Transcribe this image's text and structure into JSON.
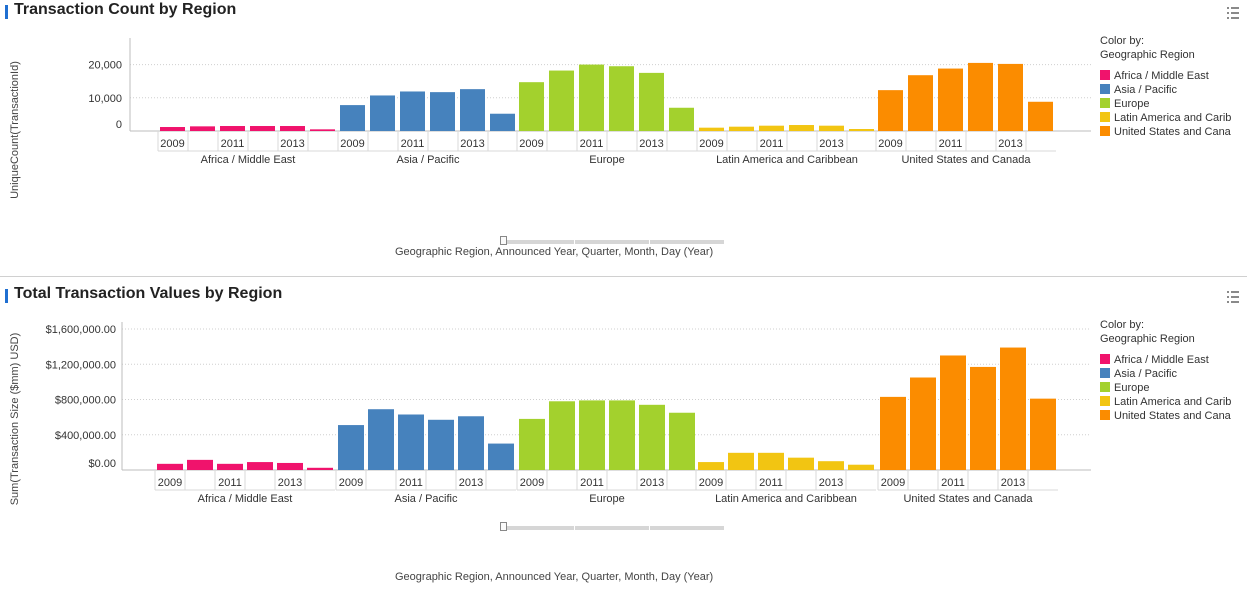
{
  "accent_color": "#1f6fd1",
  "colors": {
    "Africa / Middle East": "#f0136c",
    "Asia / Pacific": "#4682bd",
    "Europe": "#a3d12d",
    "Latin America and Caribbean": "#f2c512",
    "United States and Canada": "#fb8c00"
  },
  "panels": [
    {
      "title": "Transaction Count by Region",
      "color_by_label": "Color by:",
      "color_by_value": "Geographic Region",
      "legend": [
        "Africa / Middle East",
        "Asia / Pacific",
        "Europe",
        "Latin America and Carib",
        "United States and Cana"
      ],
      "slider_label": "Geographic Region,  Announced Year, Quarter, Month, Day (Year)",
      "chart_data": {
        "type": "bar",
        "title": "Transaction Count by Region",
        "ylabel": "UniqueCount(TransactionId)",
        "xlabel": "",
        "ylim": [
          0,
          28000
        ],
        "yticks": [
          0,
          10000,
          20000
        ],
        "ytick_labels": [
          "0",
          "10,000",
          "20,000"
        ],
        "grid": true,
        "legend_position": "right",
        "year_labels": [
          "2009",
          "2011",
          "2013"
        ],
        "groups": [
          {
            "name": "Africa / Middle East",
            "years": [
              2009,
              2010,
              2011,
              2012,
              2013,
              2014
            ],
            "values": [
              1200,
              1400,
              1500,
              1500,
              1500,
              500
            ]
          },
          {
            "name": "Asia / Pacific",
            "years": [
              2009,
              2010,
              2011,
              2012,
              2013,
              2014
            ],
            "values": [
              7800,
              10700,
              11900,
              11700,
              12600,
              5200
            ]
          },
          {
            "name": "Europe",
            "years": [
              2009,
              2010,
              2011,
              2012,
              2013,
              2014
            ],
            "values": [
              14700,
              18200,
              20000,
              19500,
              17500,
              7000
            ]
          },
          {
            "name": "Latin America and Caribbean",
            "years": [
              2009,
              2010,
              2011,
              2012,
              2013,
              2014
            ],
            "values": [
              1000,
              1300,
              1600,
              1800,
              1600,
              600
            ]
          },
          {
            "name": "United States and Canada",
            "years": [
              2009,
              2010,
              2011,
              2012,
              2013,
              2014
            ],
            "values": [
              12300,
              16800,
              18800,
              20500,
              20200,
              8800
            ]
          }
        ]
      }
    },
    {
      "title": "Total Transaction Values by Region",
      "color_by_label": "Color by:",
      "color_by_value": "Geographic Region",
      "legend": [
        "Africa / Middle East",
        "Asia / Pacific",
        "Europe",
        "Latin America and Carib",
        "United States and Cana"
      ],
      "slider_label": "Geographic Region,  Announced Year, Quarter, Month, Day (Year)",
      "chart_data": {
        "type": "bar",
        "title": "Total Transaction Values by Region",
        "ylabel": "Sum(Transaction Size ($mm) USD)",
        "xlabel": "",
        "ylim": [
          0,
          1680000
        ],
        "yticks": [
          0,
          400000,
          800000,
          1200000,
          1600000
        ],
        "ytick_labels": [
          "$0.00",
          "$400,000.00",
          "$800,000.00",
          "$1,200,000.00",
          "$1,600,000.00"
        ],
        "grid": true,
        "legend_position": "right",
        "year_labels": [
          "2009",
          "2011",
          "2013"
        ],
        "groups": [
          {
            "name": "Africa / Middle East",
            "years": [
              2009,
              2010,
              2011,
              2012,
              2013,
              2014
            ],
            "values": [
              70000,
              115000,
              70000,
              90000,
              80000,
              25000
            ]
          },
          {
            "name": "Asia / Pacific",
            "years": [
              2009,
              2010,
              2011,
              2012,
              2013,
              2014
            ],
            "values": [
              510000,
              690000,
              630000,
              570000,
              610000,
              300000
            ]
          },
          {
            "name": "Europe",
            "years": [
              2009,
              2010,
              2011,
              2012,
              2013,
              2014
            ],
            "values": [
              580000,
              780000,
              790000,
              790000,
              740000,
              650000
            ]
          },
          {
            "name": "Latin America and Caribbean",
            "years": [
              2009,
              2010,
              2011,
              2012,
              2013,
              2014
            ],
            "values": [
              90000,
              195000,
              195000,
              140000,
              100000,
              60000
            ]
          },
          {
            "name": "United States and Canada",
            "years": [
              2009,
              2010,
              2011,
              2012,
              2013,
              2014
            ],
            "values": [
              830000,
              1050000,
              1300000,
              1170000,
              1390000,
              810000
            ]
          }
        ]
      }
    }
  ]
}
